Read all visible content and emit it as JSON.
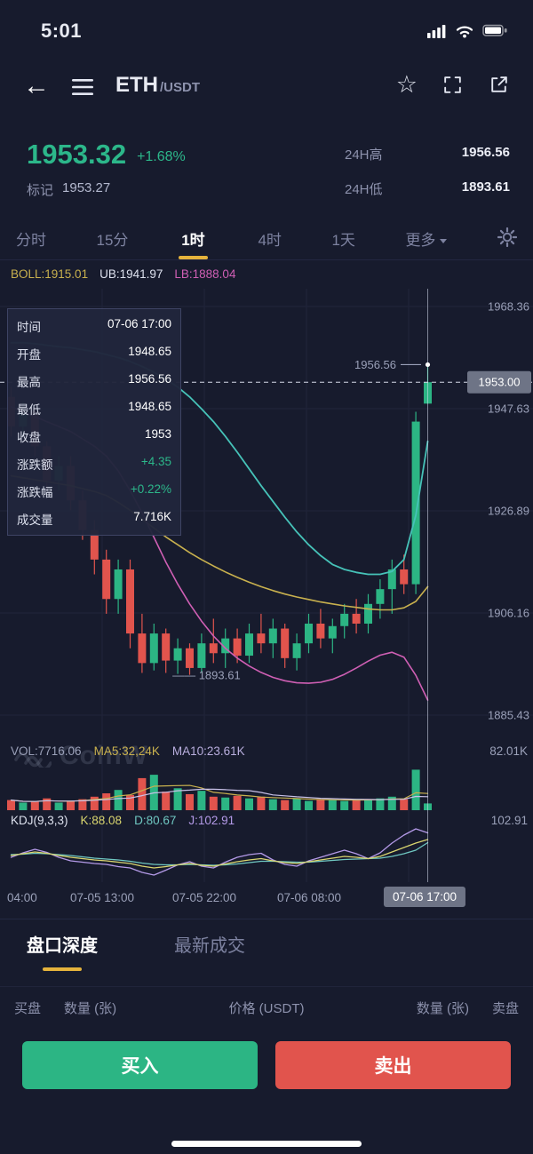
{
  "status_bar": {
    "time": "5:01"
  },
  "header": {
    "symbol": "ETH",
    "quote": "/USDT"
  },
  "ticker": {
    "last_price": "1953.32",
    "change_pct": "+1.68%",
    "mark_label": "标记",
    "mark_price": "1953.27",
    "high_label": "24H高",
    "high_value": "1956.56",
    "low_label": "24H低",
    "low_value": "1893.61"
  },
  "interval_tabs": {
    "items": [
      {
        "label": "分时"
      },
      {
        "label": "15分"
      },
      {
        "label": "1时"
      },
      {
        "label": "4时"
      },
      {
        "label": "1天"
      },
      {
        "label": "更多"
      }
    ]
  },
  "indicators": {
    "boll": "BOLL:1915.01",
    "ub": "UB:1941.97",
    "lb": "LB:1888.04"
  },
  "tooltip": {
    "rows": [
      {
        "label": "时间",
        "value": "07-06 17:00"
      },
      {
        "label": "开盘",
        "value": "1948.65"
      },
      {
        "label": "最高",
        "value": "1956.56"
      },
      {
        "label": "最低",
        "value": "1948.65"
      },
      {
        "label": "收盘",
        "value": "1953"
      },
      {
        "label": "涨跌额",
        "value": "+4.35"
      },
      {
        "label": "涨跌幅",
        "value": "+0.22%"
      },
      {
        "label": "成交量",
        "value": "7.716K"
      }
    ]
  },
  "volume_header": {
    "vol": "VOL:7716.06",
    "ma5": "MA5:32,24K",
    "ma10": "MA10:23.61K",
    "axis": "82.01K"
  },
  "kdj_header": {
    "name": "KDJ(9,3,3)",
    "k": "K:88.08",
    "d": "D:80.67",
    "j": "J:102.91",
    "axis": "102.91"
  },
  "watermark": "CoinW",
  "depth_tabs": {
    "items": [
      {
        "label": "盘口深度"
      },
      {
        "label": "最新成交"
      }
    ]
  },
  "order_table": {
    "buy_side": "买盘",
    "qty_left": "数量 (张)",
    "price": "价格 (USDT)",
    "qty_right": "数量 (张)",
    "sell_side": "卖盘"
  },
  "actions": {
    "buy": "买入",
    "sell": "卖出",
    "buy_color": "#2cb584",
    "sell_color": "#e1544d"
  },
  "chart_data": {
    "type": "candlestick",
    "title": "ETH/USDT 1时 K线 (BOLL, VOL, KDJ)",
    "y_labels": [
      "1968.36",
      "1947.63",
      "1926.89",
      "1906.16",
      "1885.43"
    ],
    "price_max": 1968.36,
    "price_min": 1885.43,
    "current_price": "1953.00",
    "current_price_value": 1953,
    "high_price": 1956.56,
    "high_annotation": "1956.56",
    "low_price": 1893.61,
    "low_annotation": "1893.61",
    "x_labels": [
      {
        "label": "04:00"
      },
      {
        "label": "07-05 13:00"
      },
      {
        "label": "07-05 22:00"
      },
      {
        "label": "07-06 08:00"
      },
      {
        "label": "07-06 17:00",
        "highlight": true
      }
    ],
    "candles": [
      [
        1950,
        1952,
        1942,
        1944
      ],
      [
        1944,
        1949,
        1942,
        1947
      ],
      [
        1947,
        1948,
        1938,
        1940
      ],
      [
        1940,
        1941,
        1931,
        1933
      ],
      [
        1933,
        1938,
        1931,
        1936
      ],
      [
        1936,
        1938,
        1927,
        1929
      ],
      [
        1929,
        1931,
        1921,
        1923
      ],
      [
        1923,
        1925,
        1914,
        1917
      ],
      [
        1917,
        1919,
        1906,
        1909
      ],
      [
        1909,
        1917,
        1906,
        1915
      ],
      [
        1915,
        1917,
        1899,
        1902
      ],
      [
        1902,
        1906,
        1894,
        1896
      ],
      [
        1896,
        1904,
        1894.5,
        1902
      ],
      [
        1902,
        1903,
        1894,
        1896.5
      ],
      [
        1896.5,
        1901,
        1893.8,
        1899
      ],
      [
        1899,
        1900,
        1893.61,
        1895
      ],
      [
        1895,
        1902,
        1894,
        1900
      ],
      [
        1900,
        1905,
        1896,
        1898
      ],
      [
        1898,
        1903,
        1895,
        1901
      ],
      [
        1901,
        1903,
        1896,
        1897.5
      ],
      [
        1897.5,
        1904,
        1896,
        1902
      ],
      [
        1902,
        1906,
        1898,
        1900
      ],
      [
        1900,
        1905,
        1897,
        1903
      ],
      [
        1903,
        1904,
        1895,
        1897
      ],
      [
        1897,
        1902,
        1894.5,
        1900
      ],
      [
        1900,
        1906,
        1898,
        1904
      ],
      [
        1904,
        1907,
        1899,
        1901
      ],
      [
        1901,
        1905,
        1898,
        1903.5
      ],
      [
        1903.5,
        1908,
        1901,
        1906
      ],
      [
        1906,
        1909,
        1902,
        1904
      ],
      [
        1904,
        1910,
        1902,
        1908
      ],
      [
        1908,
        1913,
        1905,
        1911
      ],
      [
        1911,
        1917,
        1906,
        1915
      ],
      [
        1915,
        1918,
        1910,
        1912
      ],
      [
        1912,
        1947,
        1910,
        1945
      ],
      [
        1948.65,
        1956.56,
        1948.65,
        1953
      ]
    ],
    "overlays": {
      "teal": [
        1961,
        1961,
        1960.8,
        1960.5,
        1960.2,
        1960,
        1959.6,
        1959.2,
        1958.6,
        1958,
        1957.2,
        1956.2,
        1955,
        1953.6,
        1952,
        1950,
        1947.6,
        1945,
        1942,
        1938.8,
        1935.4,
        1932,
        1928.8,
        1925.6,
        1922.6,
        1920,
        1917.8,
        1916,
        1915,
        1914.4,
        1914,
        1914,
        1914.6,
        1917,
        1926,
        1941
      ],
      "yellow": [
        1934,
        1933.6,
        1933.2,
        1932.8,
        1932.4,
        1932,
        1931.4,
        1930.8,
        1930,
        1928.6,
        1927,
        1925.2,
        1923.4,
        1921.6,
        1920,
        1918.4,
        1917,
        1915.7,
        1914.5,
        1913.4,
        1912.4,
        1911.5,
        1910.7,
        1910,
        1909.4,
        1908.9,
        1908.4,
        1908,
        1907.6,
        1907.3,
        1907,
        1906.8,
        1906.8,
        1907.2,
        1908.5,
        1911.5
      ],
      "pink": [
        1948,
        1947,
        1946,
        1945,
        1944,
        1943,
        1941.5,
        1940,
        1938,
        1935,
        1931,
        1926.5,
        1921.5,
        1916.5,
        1912,
        1908,
        1904.5,
        1901.5,
        1899,
        1897,
        1895.4,
        1894.1,
        1893.1,
        1892.4,
        1892,
        1891.9,
        1892.1,
        1892.7,
        1893.7,
        1895,
        1896.4,
        1897.6,
        1898.2,
        1897.2,
        1893.5,
        1888.5
      ]
    },
    "volumes": [
      12,
      9,
      10,
      14,
      9,
      11,
      13,
      16,
      20,
      24,
      18,
      38,
      42,
      22,
      26,
      19,
      23,
      16,
      15,
      17,
      14,
      16,
      13,
      12,
      14,
      11,
      13,
      12,
      11,
      13,
      12,
      14,
      16,
      13,
      48,
      8
    ],
    "vol_axis_max_label": "82.01K",
    "kdj": {
      "k": [
        52,
        56,
        60,
        57,
        52,
        48,
        45,
        42,
        40,
        37,
        34,
        28,
        24,
        27,
        31,
        34,
        30,
        28,
        33,
        38,
        42,
        45,
        40,
        36,
        34,
        38,
        42,
        46,
        50,
        48,
        45,
        50,
        60,
        70,
        80,
        88
      ],
      "d": [
        54,
        55,
        57,
        56,
        54,
        52,
        49,
        46,
        44,
        42,
        39,
        35,
        32,
        31,
        31,
        32,
        31,
        30,
        31,
        33,
        36,
        39,
        39,
        38,
        37,
        37,
        39,
        41,
        43,
        44,
        45,
        46,
        50,
        56,
        64,
        81
      ],
      "j": [
        48,
        58,
        66,
        59,
        48,
        40,
        37,
        34,
        32,
        27,
        24,
        14,
        8,
        19,
        31,
        38,
        28,
        24,
        37,
        48,
        54,
        57,
        42,
        32,
        28,
        40,
        48,
        56,
        64,
        56,
        45,
        58,
        80,
        98,
        112,
        103
      ]
    },
    "kdj_axis_label": "102.91",
    "colors": {
      "up": "#2cb584",
      "down": "#e1544d",
      "teal": "#46c2b8",
      "yellow": "#c9b14e",
      "pink": "#cf5fb4",
      "grid": "#20243a",
      "axis_text": "#9aa0b8",
      "k": "#d9d56f",
      "d": "#6fc7c1",
      "j": "#b49ae8"
    }
  }
}
